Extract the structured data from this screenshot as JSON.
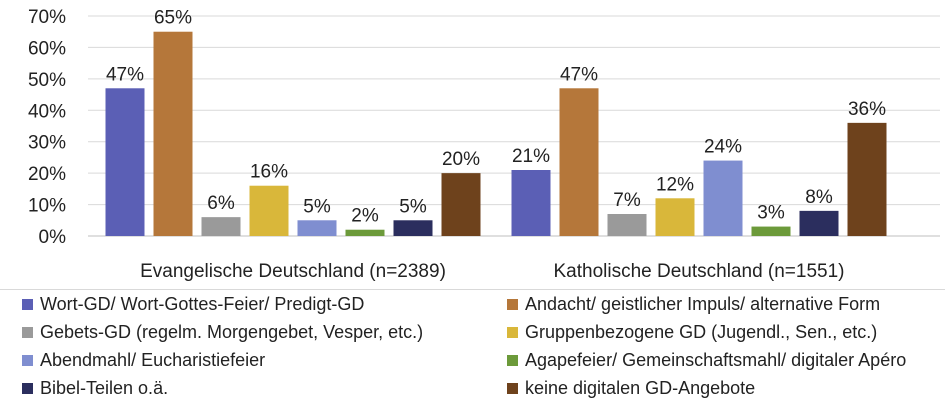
{
  "chart_data": {
    "type": "bar",
    "categories": [
      "Evangelische Deutschland (n=2389)",
      "Katholische Deutschland (n=1551)"
    ],
    "y_ticks": [
      "0%",
      "10%",
      "20%",
      "30%",
      "40%",
      "50%",
      "60%",
      "70%"
    ],
    "ylim": [
      0,
      70
    ],
    "grid": true,
    "legend_position": "bottom",
    "series": [
      {
        "name": "Wort-GD/ Wort-Gottes-Feier/ Predigt-GD",
        "color": "#5B5FB5",
        "values": [
          47,
          21
        ],
        "labels": [
          "47%",
          "21%"
        ]
      },
      {
        "name": "Andacht/ geistlicher Impuls/ alternative Form",
        "color": "#B5773A",
        "values": [
          65,
          47
        ],
        "labels": [
          "65%",
          "47%"
        ]
      },
      {
        "name": "Gebets-GD (regelm. Morgengebet, Vesper, etc.)",
        "color": "#9A9A9A",
        "values": [
          6,
          7
        ],
        "labels": [
          "6%",
          "7%"
        ]
      },
      {
        "name": "Gruppenbezogene GD (Jugendl., Sen., etc.)",
        "color": "#D9B73A",
        "values": [
          16,
          12
        ],
        "labels": [
          "16%",
          "12%"
        ]
      },
      {
        "name": "Abendmahl/ Eucharistiefeier",
        "color": "#7F8ED0",
        "values": [
          5,
          24
        ],
        "labels": [
          "5%",
          "24%"
        ]
      },
      {
        "name": "Agapefeier/ Gemeinschaftsmahl/ digitaler Apéro",
        "color": "#6C9A3A",
        "values": [
          2,
          3
        ],
        "labels": [
          "2%",
          "3%"
        ]
      },
      {
        "name": "Bibel-Teilen o.ä.",
        "color": "#2B2E5E",
        "values": [
          5,
          8
        ],
        "labels": [
          "5%",
          "8%"
        ]
      },
      {
        "name": "keine digitalen GD-Angebote",
        "color": "#6E421C",
        "values": [
          20,
          36
        ],
        "labels": [
          "20%",
          "36%"
        ]
      }
    ]
  }
}
